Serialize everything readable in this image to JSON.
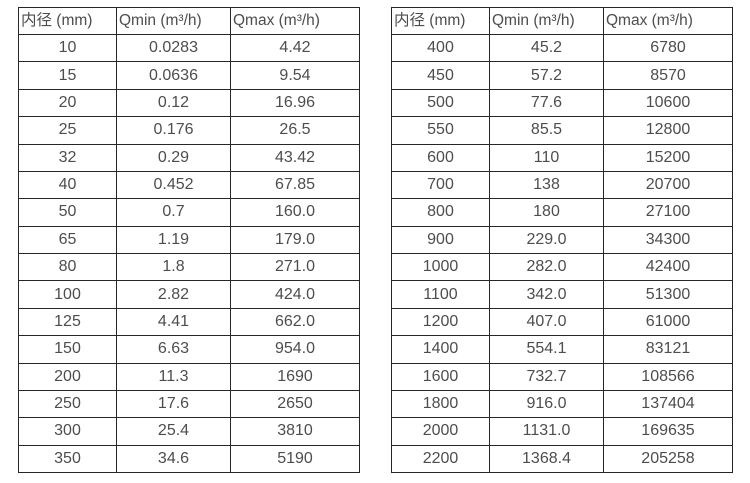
{
  "colors": {
    "background": "#ffffff",
    "border": "#262626",
    "text": "#4d4d4d"
  },
  "chart_data": [
    {
      "type": "table",
      "name": "flow-rate-table-small-diameters",
      "columns": [
        "内径 (mm)",
        "Qmin (m³/h)",
        "Qmax (m³/h)"
      ],
      "rows": [
        [
          "10",
          "0.0283",
          "4.42"
        ],
        [
          "15",
          "0.0636",
          "9.54"
        ],
        [
          "20",
          "0.12",
          "16.96"
        ],
        [
          "25",
          "0.176",
          "26.5"
        ],
        [
          "32",
          "0.29",
          "43.42"
        ],
        [
          "40",
          "0.452",
          "67.85"
        ],
        [
          "50",
          "0.7",
          "160.0"
        ],
        [
          "65",
          "1.19",
          "179.0"
        ],
        [
          "80",
          "1.8",
          "271.0"
        ],
        [
          "100",
          "2.82",
          "424.0"
        ],
        [
          "125",
          "4.41",
          "662.0"
        ],
        [
          "150",
          "6.63",
          "954.0"
        ],
        [
          "200",
          "11.3",
          "1690"
        ],
        [
          "250",
          "17.6",
          "2650"
        ],
        [
          "300",
          "25.4",
          "3810"
        ],
        [
          "350",
          "34.6",
          "5190"
        ]
      ]
    },
    {
      "type": "table",
      "name": "flow-rate-table-large-diameters",
      "columns": [
        "内径 (mm)",
        "Qmin (m³/h)",
        "Qmax (m³/h)"
      ],
      "rows": [
        [
          "400",
          "45.2",
          "6780"
        ],
        [
          "450",
          "57.2",
          "8570"
        ],
        [
          "500",
          "77.6",
          "10600"
        ],
        [
          "550",
          "85.5",
          "12800"
        ],
        [
          "600",
          "110",
          "15200"
        ],
        [
          "700",
          "138",
          "20700"
        ],
        [
          "800",
          "180",
          "27100"
        ],
        [
          "900",
          "229.0",
          "34300"
        ],
        [
          "1000",
          "282.0",
          "42400"
        ],
        [
          "1100",
          "342.0",
          "51300"
        ],
        [
          "1200",
          "407.0",
          "61000"
        ],
        [
          "1400",
          "554.1",
          "83121"
        ],
        [
          "1600",
          "732.7",
          "108566"
        ],
        [
          "1800",
          "916.0",
          "137404"
        ],
        [
          "2000",
          "1131.0",
          "169635"
        ],
        [
          "2200",
          "1368.4",
          "205258"
        ]
      ]
    }
  ]
}
